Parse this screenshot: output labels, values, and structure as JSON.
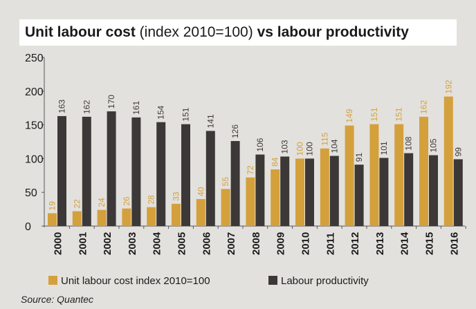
{
  "title": {
    "bold_1": "Unit labour cost",
    "normal": " (index 2010=100) ",
    "bold_2": "vs labour productivity"
  },
  "source": "Source: Quantec",
  "colors": {
    "ulc": "#d4a03c",
    "productivity": "#3c3837",
    "background": "#e3e1dd",
    "ulc_label": "#d4a03c",
    "productivity_label": "#3c3837"
  },
  "chart_data": {
    "type": "bar",
    "title": "Unit labour cost (index 2010=100) vs labour productivity",
    "categories": [
      "2000",
      "2001",
      "2002",
      "2003",
      "2004",
      "2005",
      "2006",
      "2007",
      "2008",
      "2009",
      "2010",
      "2011",
      "2012",
      "2013",
      "2014",
      "2015",
      "2016"
    ],
    "series": [
      {
        "name": "Unit labour cost index 2010=100",
        "values": [
          19,
          22,
          24,
          26,
          28,
          33,
          40,
          55,
          72,
          84,
          100,
          115,
          149,
          151,
          151,
          162,
          192
        ]
      },
      {
        "name": "Labour productivity",
        "values": [
          163,
          162,
          170,
          161,
          154,
          151,
          141,
          126,
          106,
          103,
          100,
          104,
          91,
          101,
          108,
          105,
          99
        ]
      }
    ],
    "yticks": [
      "0",
      "50",
      "100",
      "150",
      "200",
      "250"
    ],
    "ylim": [
      0,
      250
    ],
    "grid": false,
    "legend_position": "bottom"
  }
}
